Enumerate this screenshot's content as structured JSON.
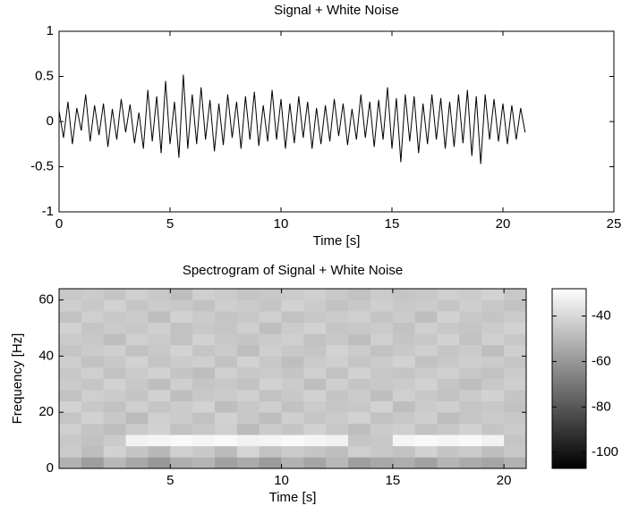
{
  "chart_data": [
    {
      "type": "line",
      "title": "Signal + White Noise",
      "xlabel": "Time [s]",
      "color": "#000000",
      "x": [
        0,
        0.2,
        0.4,
        0.6,
        0.8,
        1,
        1.2,
        1.4,
        1.6,
        1.8,
        2,
        2.2,
        2.4,
        2.6,
        2.8,
        3,
        3.2,
        3.4,
        3.6,
        3.8,
        4,
        4.2,
        4.4,
        4.6,
        4.8,
        5,
        5.2,
        5.4,
        5.6,
        5.8,
        6,
        6.2,
        6.4,
        6.6,
        6.8,
        7,
        7.2,
        7.4,
        7.6,
        7.8,
        8,
        8.2,
        8.4,
        8.6,
        8.8,
        9,
        9.2,
        9.4,
        9.6,
        9.8,
        10,
        10.2,
        10.4,
        10.6,
        10.8,
        11,
        11.2,
        11.4,
        11.6,
        11.8,
        12,
        12.2,
        12.4,
        12.6,
        12.8,
        13,
        13.2,
        13.4,
        13.6,
        13.8,
        14,
        14.2,
        14.4,
        14.6,
        14.8,
        15,
        15.2,
        15.4,
        15.6,
        15.8,
        16,
        16.2,
        16.4,
        16.6,
        16.8,
        17,
        17.2,
        17.4,
        17.6,
        17.8,
        18,
        18.2,
        18.4,
        18.6,
        18.8,
        19,
        19.2,
        19.4,
        19.6,
        19.8,
        20,
        20.2,
        20.4,
        20.6,
        20.8,
        21
      ],
      "values": [
        0.12,
        -0.18,
        0.22,
        -0.25,
        0.15,
        -0.1,
        0.3,
        -0.22,
        0.18,
        -0.15,
        0.2,
        -0.28,
        0.14,
        -0.2,
        0.25,
        -0.12,
        0.19,
        -0.24,
        0.1,
        -0.3,
        0.35,
        -0.22,
        0.28,
        -0.35,
        0.45,
        -0.25,
        0.22,
        -0.4,
        0.52,
        -0.3,
        0.3,
        -0.25,
        0.38,
        -0.2,
        0.24,
        -0.33,
        0.2,
        -0.26,
        0.3,
        -0.18,
        0.22,
        -0.3,
        0.28,
        -0.2,
        0.33,
        -0.27,
        0.18,
        -0.22,
        0.35,
        -0.2,
        0.25,
        -0.3,
        0.2,
        -0.24,
        0.28,
        -0.18,
        0.22,
        -0.3,
        0.15,
        -0.25,
        0.18,
        -0.22,
        0.25,
        -0.16,
        0.2,
        -0.26,
        0.14,
        -0.2,
        0.3,
        -0.18,
        0.22,
        -0.28,
        0.24,
        -0.2,
        0.38,
        -0.3,
        0.26,
        -0.45,
        0.3,
        -0.22,
        0.28,
        -0.35,
        0.2,
        -0.25,
        0.3,
        -0.2,
        0.26,
        -0.3,
        0.22,
        -0.28,
        0.3,
        -0.24,
        0.35,
        -0.38,
        0.28,
        -0.47,
        0.3,
        -0.2,
        0.25,
        -0.22,
        0.2,
        -0.25,
        0.18,
        -0.2,
        0.15,
        -0.12
      ],
      "xlim": [
        0,
        25
      ],
      "ylim": [
        -1,
        1
      ],
      "xticks": [
        0,
        5,
        10,
        15,
        20,
        25
      ],
      "yticks": [
        -1,
        -0.5,
        0,
        0.5,
        1
      ]
    },
    {
      "type": "heatmap",
      "title": "Spectrogram of Signal + White Noise",
      "xlabel": "Time [s]",
      "ylabel": "Frequency [Hz]",
      "x": [
        0.5,
        1.5,
        2.5,
        3.5,
        4.5,
        5.5,
        6.5,
        7.5,
        8.5,
        9.5,
        10.5,
        11.5,
        12.5,
        13.5,
        14.5,
        15.5,
        16.5,
        17.5,
        18.5,
        19.5,
        20.5
      ],
      "y": [
        2,
        6,
        10,
        14,
        18,
        22,
        26,
        30,
        34,
        38,
        42,
        46,
        50,
        54,
        58,
        62
      ],
      "z": [
        [
          -52,
          -58,
          -50,
          -55,
          -60,
          -53,
          -51,
          -57,
          -54,
          -59,
          -52,
          -56,
          -50,
          -58,
          -55,
          -53,
          -57,
          -51,
          -54,
          -56,
          -52
        ],
        [
          -44,
          -48,
          -42,
          -46,
          -50,
          -43,
          -45,
          -49,
          -41,
          -47,
          -44,
          -46,
          -48,
          -43,
          -45,
          -47,
          -42,
          -46,
          -44,
          -48,
          -45
        ],
        [
          -45,
          -47,
          -44,
          -32,
          -31,
          -30,
          -31,
          -30,
          -32,
          -31,
          -30,
          -31,
          -32,
          -46,
          -45,
          -31,
          -30,
          -31,
          -30,
          -32,
          -46
        ],
        [
          -43,
          -46,
          -48,
          -44,
          -42,
          -47,
          -45,
          -43,
          -49,
          -44,
          -46,
          -42,
          -45,
          -48,
          -44,
          -43,
          -47,
          -45,
          -42,
          -46,
          -44
        ],
        [
          -46,
          -42,
          -45,
          -49,
          -43,
          -44,
          -47,
          -42,
          -45,
          -48,
          -43,
          -46,
          -44,
          -42,
          -47,
          -45,
          -43,
          -48,
          -46,
          -44,
          -45
        ],
        [
          -42,
          -45,
          -47,
          -43,
          -46,
          -44,
          -42,
          -48,
          -45,
          -43,
          -47,
          -44,
          -46,
          -45,
          -42,
          -48,
          -44,
          -43,
          -46,
          -45,
          -47
        ],
        [
          -47,
          -43,
          -44,
          -46,
          -42,
          -48,
          -45,
          -44,
          -43,
          -47,
          -45,
          -42,
          -46,
          -44,
          -48,
          -43,
          -45,
          -47,
          -44,
          -42,
          -46
        ],
        [
          -44,
          -46,
          -42,
          -45,
          -48,
          -43,
          -46,
          -45,
          -47,
          -42,
          -44,
          -48,
          -43,
          -46,
          -45,
          -44,
          -42,
          -46,
          -48,
          -45,
          -43
        ],
        [
          -45,
          -43,
          -47,
          -44,
          -42,
          -46,
          -48,
          -43,
          -45,
          -44,
          -46,
          -43,
          -47,
          -42,
          -45,
          -46,
          -44,
          -43,
          -45,
          -47,
          -44
        ],
        [
          -43,
          -47,
          -45,
          -42,
          -46,
          -44,
          -43,
          -47,
          -42,
          -45,
          -48,
          -44,
          -43,
          -46,
          -44,
          -42,
          -47,
          -45,
          -43,
          -44,
          -46
        ],
        [
          -46,
          -44,
          -43,
          -47,
          -45,
          -42,
          -46,
          -44,
          -48,
          -43,
          -45,
          -46,
          -42,
          -44,
          -47,
          -45,
          -43,
          -46,
          -44,
          -48,
          -43
        ],
        [
          -44,
          -45,
          -48,
          -43,
          -44,
          -47,
          -42,
          -45,
          -46,
          -44,
          -43,
          -47,
          -45,
          -48,
          -43,
          -46,
          -45,
          -42,
          -47,
          -43,
          -45
        ],
        [
          -42,
          -46,
          -44,
          -45,
          -43,
          -47,
          -45,
          -46,
          -43,
          -48,
          -44,
          -42,
          -46,
          -45,
          -44,
          -47,
          -43,
          -45,
          -46,
          -44,
          -42
        ],
        [
          -47,
          -43,
          -45,
          -44,
          -48,
          -42,
          -44,
          -46,
          -45,
          -43,
          -47,
          -45,
          -44,
          -43,
          -46,
          -44,
          -48,
          -42,
          -45,
          -46,
          -44
        ],
        [
          -43,
          -45,
          -42,
          -46,
          -44,
          -45,
          -47,
          -43,
          -44,
          -46,
          -42,
          -44,
          -47,
          -45,
          -43,
          -45,
          -44,
          -46,
          -43,
          -45,
          -47
        ],
        [
          -45,
          -44,
          -46,
          -43,
          -45,
          -48,
          -43,
          -44,
          -46,
          -45,
          -44,
          -43,
          -45,
          -47,
          -44,
          -46,
          -45,
          -43,
          -44,
          -42,
          -45
        ]
      ],
      "xlim": [
        0,
        21
      ],
      "ylim": [
        0,
        64
      ],
      "xticks": [
        5,
        10,
        15,
        20
      ],
      "yticks": [
        0,
        20,
        40,
        60
      ],
      "colormap": "gray",
      "clim": [
        -107,
        -28
      ],
      "cticks": [
        -100,
        -80,
        -60,
        -40
      ]
    }
  ]
}
